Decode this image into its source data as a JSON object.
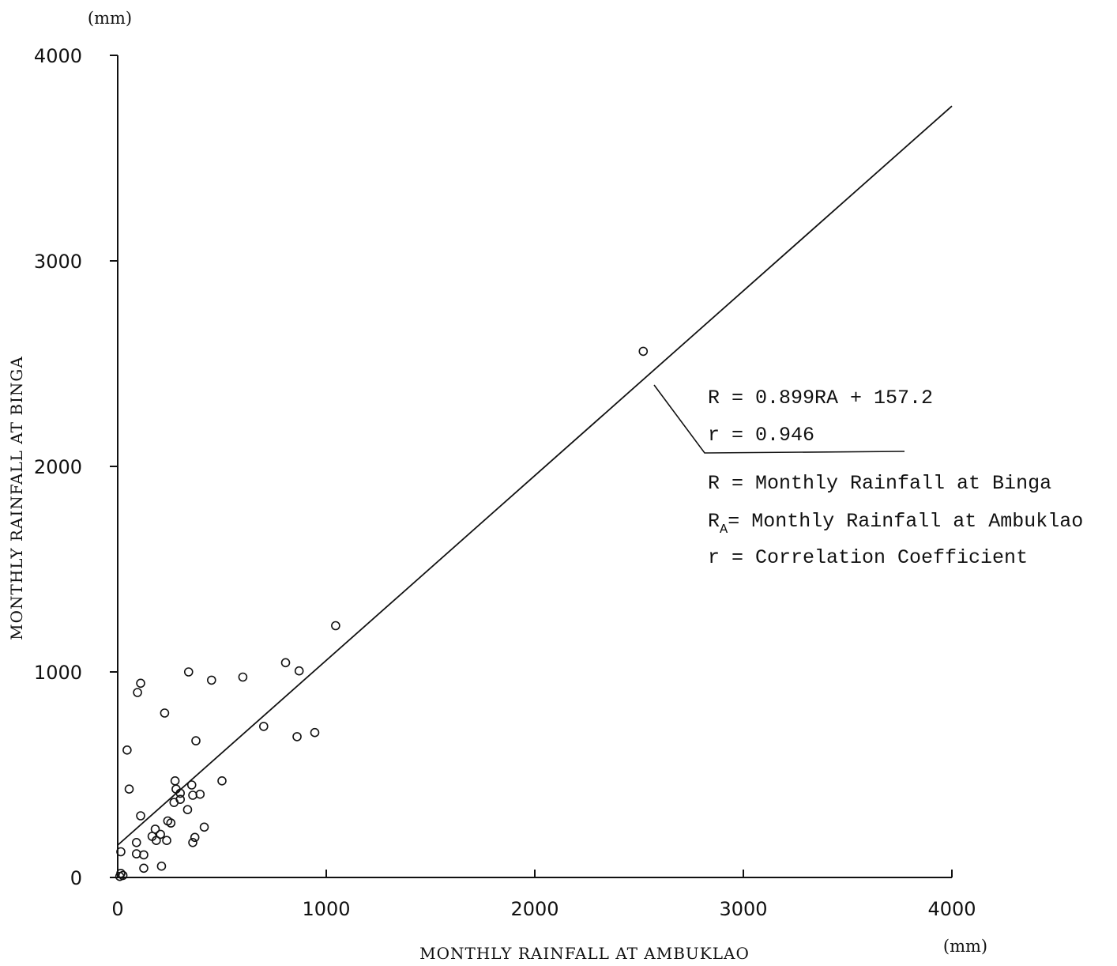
{
  "chart_data": {
    "type": "scatter",
    "xlabel": "MONTHLY RAINFALL AT AMBUKLAO",
    "ylabel": "MONTHLY RAINFALL AT BINGA",
    "x_unit": "(mm)",
    "y_unit": "(mm)",
    "xlim": [
      0,
      4000
    ],
    "ylim": [
      0,
      4000
    ],
    "x_ticks": [
      "0",
      "1000",
      "2000",
      "3000",
      "4000"
    ],
    "y_ticks": [
      "0",
      "1000",
      "2000",
      "3000",
      "4000"
    ],
    "grid": false,
    "points": [
      {
        "x": 2520,
        "y": 2560
      },
      {
        "x": 1045,
        "y": 1225
      },
      {
        "x": 805,
        "y": 1045
      },
      {
        "x": 870,
        "y": 1005
      },
      {
        "x": 600,
        "y": 975
      },
      {
        "x": 450,
        "y": 960
      },
      {
        "x": 340,
        "y": 1000
      },
      {
        "x": 110,
        "y": 945
      },
      {
        "x": 95,
        "y": 900
      },
      {
        "x": 225,
        "y": 800
      },
      {
        "x": 700,
        "y": 735
      },
      {
        "x": 945,
        "y": 705
      },
      {
        "x": 860,
        "y": 685
      },
      {
        "x": 375,
        "y": 665
      },
      {
        "x": 45,
        "y": 620
      },
      {
        "x": 500,
        "y": 470
      },
      {
        "x": 275,
        "y": 470
      },
      {
        "x": 355,
        "y": 450
      },
      {
        "x": 55,
        "y": 430
      },
      {
        "x": 280,
        "y": 430
      },
      {
        "x": 300,
        "y": 410
      },
      {
        "x": 360,
        "y": 400
      },
      {
        "x": 395,
        "y": 405
      },
      {
        "x": 300,
        "y": 380
      },
      {
        "x": 270,
        "y": 365
      },
      {
        "x": 335,
        "y": 330
      },
      {
        "x": 110,
        "y": 300
      },
      {
        "x": 240,
        "y": 275
      },
      {
        "x": 255,
        "y": 265
      },
      {
        "x": 415,
        "y": 245
      },
      {
        "x": 180,
        "y": 235
      },
      {
        "x": 205,
        "y": 210
      },
      {
        "x": 165,
        "y": 200
      },
      {
        "x": 370,
        "y": 195
      },
      {
        "x": 185,
        "y": 180
      },
      {
        "x": 235,
        "y": 180
      },
      {
        "x": 90,
        "y": 170
      },
      {
        "x": 360,
        "y": 170
      },
      {
        "x": 15,
        "y": 125
      },
      {
        "x": 90,
        "y": 115
      },
      {
        "x": 125,
        "y": 110
      },
      {
        "x": 210,
        "y": 55
      },
      {
        "x": 125,
        "y": 45
      },
      {
        "x": 15,
        "y": 20
      },
      {
        "x": 10,
        "y": 5
      },
      {
        "x": 25,
        "y": 10
      }
    ],
    "fit_line": {
      "slope": 0.899,
      "intercept": 157.2,
      "x_start": 0,
      "x_end": 4000
    },
    "annotations": {
      "equation": "R = 0.899RA + 157.2",
      "correlation": "r = 0.946",
      "legend_r": "R = Monthly Rainfall at Binga",
      "legend_ra_symbol": "R",
      "legend_ra_subscript": "A",
      "legend_ra_text": "= Monthly Rainfall at Ambuklao",
      "legend_corr": "r = Correlation Coefficient"
    }
  }
}
